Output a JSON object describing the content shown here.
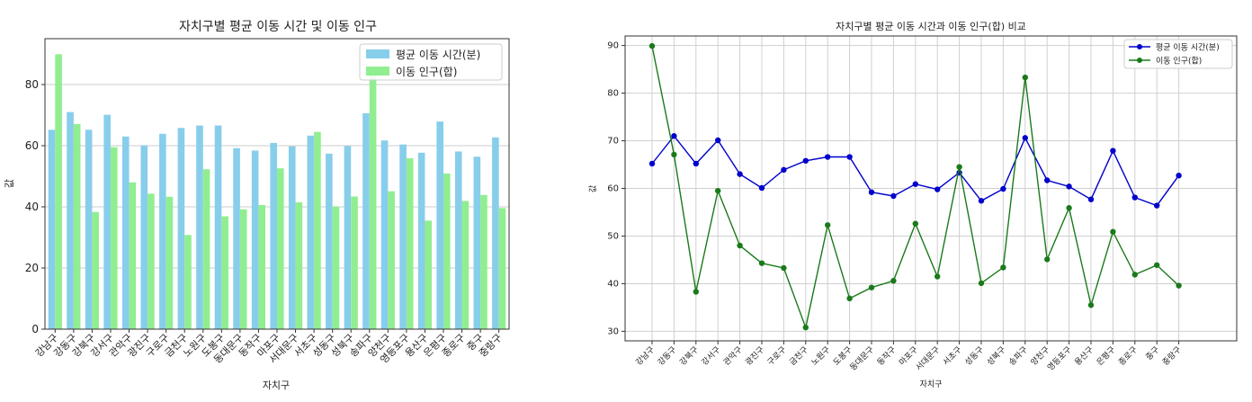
{
  "chart_data": [
    {
      "type": "bar",
      "title": "자치구별 평균 이동 시간 및 이동 인구",
      "xlabel": "자치구",
      "ylabel": "값",
      "ylim": [
        0,
        95
      ],
      "yticks": [
        0,
        20,
        40,
        60,
        80
      ],
      "grid": "y",
      "legend_position": "top-right",
      "categories": [
        "강남구",
        "강동구",
        "강북구",
        "강서구",
        "관악구",
        "광진구",
        "구로구",
        "금천구",
        "노원구",
        "도봉구",
        "동대문구",
        "동작구",
        "마포구",
        "서대문구",
        "서초구",
        "성동구",
        "성북구",
        "송파구",
        "양천구",
        "영등포구",
        "용산구",
        "은평구",
        "종로구",
        "중구",
        "중랑구"
      ],
      "series": [
        {
          "name": "평균 이동 시간(분)",
          "color": "#87ceeb",
          "values": [
            65.2,
            71.0,
            65.2,
            70.1,
            63.0,
            60.1,
            63.9,
            65.8,
            66.6,
            66.6,
            59.2,
            58.4,
            60.9,
            59.8,
            63.3,
            57.4,
            59.9,
            70.6,
            61.7,
            60.4,
            57.7,
            67.9,
            58.1,
            56.4,
            62.7
          ]
        },
        {
          "name": "이동 인구(합)",
          "color": "#90ee90",
          "values": [
            89.9,
            67.1,
            38.3,
            59.5,
            48.0,
            44.3,
            43.3,
            30.8,
            52.3,
            36.9,
            39.2,
            40.6,
            52.6,
            41.5,
            64.5,
            40.1,
            43.4,
            83.3,
            45.1,
            55.9,
            35.5,
            50.9,
            41.9,
            43.9,
            39.6
          ]
        }
      ]
    },
    {
      "type": "line",
      "title": "자치구별 평균 이동 시간과 이동 인구(합) 비교",
      "xlabel": "자치구",
      "ylabel": "값",
      "ylim": [
        28,
        92
      ],
      "yticks": [
        30,
        40,
        50,
        60,
        70,
        80,
        90
      ],
      "grid": "both",
      "legend_position": "top-right",
      "categories": [
        "강남구",
        "강동구",
        "강북구",
        "강서구",
        "관악구",
        "광진구",
        "구로구",
        "금천구",
        "노원구",
        "도봉구",
        "동대문구",
        "동작구",
        "마포구",
        "서대문구",
        "서초구",
        "성동구",
        "성북구",
        "송파구",
        "양천구",
        "영등포구",
        "용산구",
        "은평구",
        "종로구",
        "중구",
        "중랑구"
      ],
      "series": [
        {
          "name": "평균 이동 시간(분)",
          "color": "#0000cc",
          "values": [
            65.2,
            71.0,
            65.2,
            70.1,
            63.0,
            60.1,
            63.9,
            65.8,
            66.6,
            66.6,
            59.2,
            58.4,
            60.9,
            59.8,
            63.3,
            57.4,
            59.9,
            70.6,
            61.7,
            60.4,
            57.7,
            67.9,
            58.1,
            56.4,
            62.7
          ]
        },
        {
          "name": "이동 인구(합)",
          "color": "#1a7a1a",
          "values": [
            89.9,
            67.1,
            38.3,
            59.5,
            48.0,
            44.3,
            43.3,
            30.8,
            52.3,
            36.9,
            39.2,
            40.6,
            52.6,
            41.5,
            64.5,
            40.1,
            43.4,
            83.3,
            45.1,
            55.9,
            35.5,
            50.9,
            41.9,
            43.9,
            39.6
          ]
        }
      ]
    }
  ]
}
